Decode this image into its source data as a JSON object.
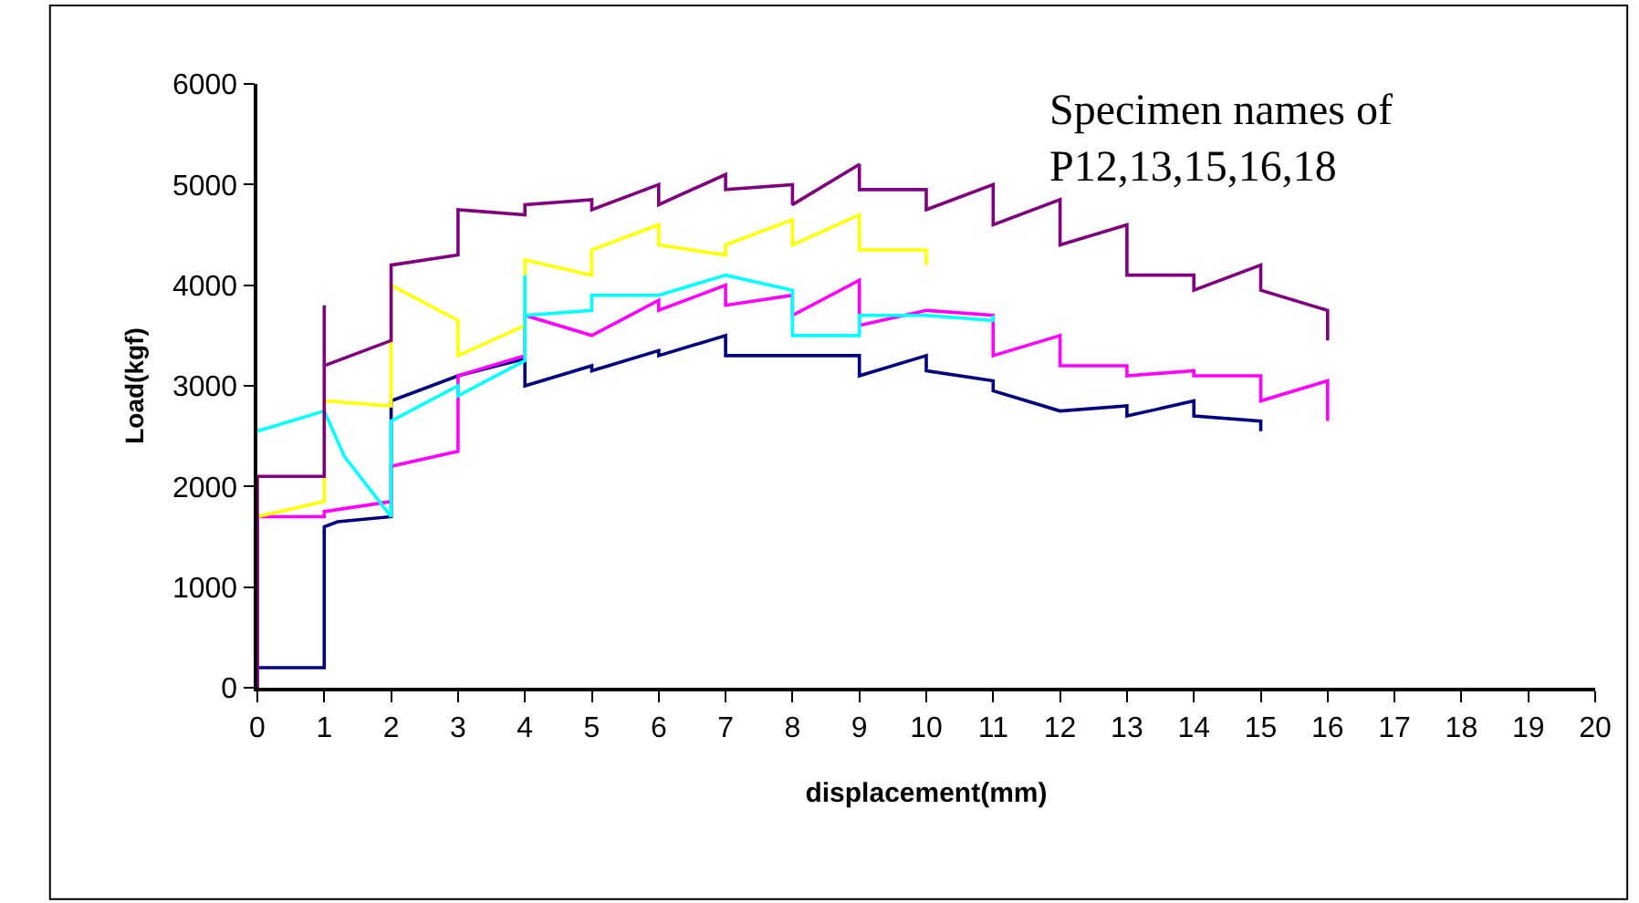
{
  "chart_data": {
    "type": "line",
    "xlabel": "displacement(mm)",
    "ylabel": "Load(kgf)",
    "annotations": [
      "Specimen names of\nP12,13,15,16,18"
    ],
    "xlim": [
      0,
      20
    ],
    "xticks": [
      0,
      1,
      2,
      3,
      4,
      5,
      6,
      7,
      8,
      9,
      10,
      11,
      12,
      13,
      14,
      15,
      16,
      17,
      18,
      19,
      20
    ],
    "ylim": [
      0,
      6000
    ],
    "yticks": [
      0,
      1000,
      2000,
      3000,
      4000,
      5000,
      6000
    ],
    "marker": "none",
    "line_style": "solid",
    "series": [
      {
        "color": "#000080",
        "x": [
          0,
          0,
          1,
          1,
          1.2,
          2,
          2,
          3,
          4,
          4,
          5,
          5,
          6,
          6,
          7,
          7,
          8,
          9,
          9,
          10,
          10,
          11,
          11,
          12,
          13,
          13,
          14,
          14,
          15,
          15
        ],
        "values": [
          0,
          200,
          200,
          1600,
          1650,
          1700,
          2850,
          3100,
          3270,
          3000,
          3200,
          3150,
          3350,
          3300,
          3500,
          3300,
          3300,
          3300,
          3100,
          3300,
          3150,
          3050,
          2950,
          2750,
          2800,
          2700,
          2850,
          2700,
          2650,
          2550
        ]
      },
      {
        "color": "#ff00ff",
        "x": [
          0,
          0,
          1,
          1,
          2,
          2,
          3,
          3,
          4,
          4,
          5,
          6,
          6,
          7,
          7,
          8,
          8,
          9,
          9,
          10,
          11,
          11,
          12,
          12,
          13,
          13,
          14,
          14,
          15,
          15,
          16,
          16
        ],
        "values": [
          0,
          1700,
          1700,
          1750,
          1850,
          2200,
          2350,
          3100,
          3300,
          3700,
          3500,
          3850,
          3750,
          4000,
          3800,
          3900,
          3700,
          4050,
          3600,
          3750,
          3700,
          3300,
          3500,
          3200,
          3200,
          3100,
          3150,
          3100,
          3100,
          2850,
          3050,
          2650
        ]
      },
      {
        "color": "#ffff00",
        "x": [
          0,
          1,
          1,
          2,
          2,
          3,
          3,
          4,
          4,
          5,
          5,
          6,
          6,
          7,
          7,
          8,
          8,
          9,
          9,
          10,
          10
        ],
        "values": [
          1700,
          1850,
          2850,
          2800,
          4000,
          3650,
          3300,
          3600,
          4250,
          4100,
          4350,
          4600,
          4400,
          4300,
          4400,
          4650,
          4400,
          4700,
          4350,
          4350,
          4200
        ]
      },
      {
        "color": "#00ffff",
        "x": [
          0,
          1,
          1.3,
          2,
          2,
          3,
          3,
          4,
          4,
          4,
          5,
          5,
          6,
          7,
          8,
          8,
          9,
          9,
          10,
          11,
          11
        ],
        "values": [
          2550,
          2750,
          2300,
          1700,
          2650,
          3000,
          2900,
          3250,
          4100,
          3700,
          3750,
          3900,
          3900,
          4100,
          3950,
          3500,
          3500,
          3700,
          3700,
          3650,
          3700
        ]
      },
      {
        "color": "#800080",
        "x": [
          0,
          0,
          1,
          1,
          1,
          2,
          2,
          3,
          3,
          4,
          4,
          5,
          5,
          6,
          6,
          7,
          7,
          8,
          8,
          9,
          9,
          10,
          10,
          11,
          11,
          12,
          12,
          13,
          13,
          14,
          14,
          15,
          15,
          16,
          16
        ],
        "values": [
          0,
          2100,
          2100,
          3800,
          3200,
          3450,
          4200,
          4300,
          4750,
          4700,
          4800,
          4850,
          4750,
          5000,
          4800,
          5100,
          4950,
          5000,
          4800,
          5200,
          4950,
          4950,
          4750,
          5000,
          4600,
          4850,
          4400,
          4600,
          4100,
          4100,
          3950,
          4200,
          3950,
          3750,
          3450
        ]
      }
    ]
  }
}
